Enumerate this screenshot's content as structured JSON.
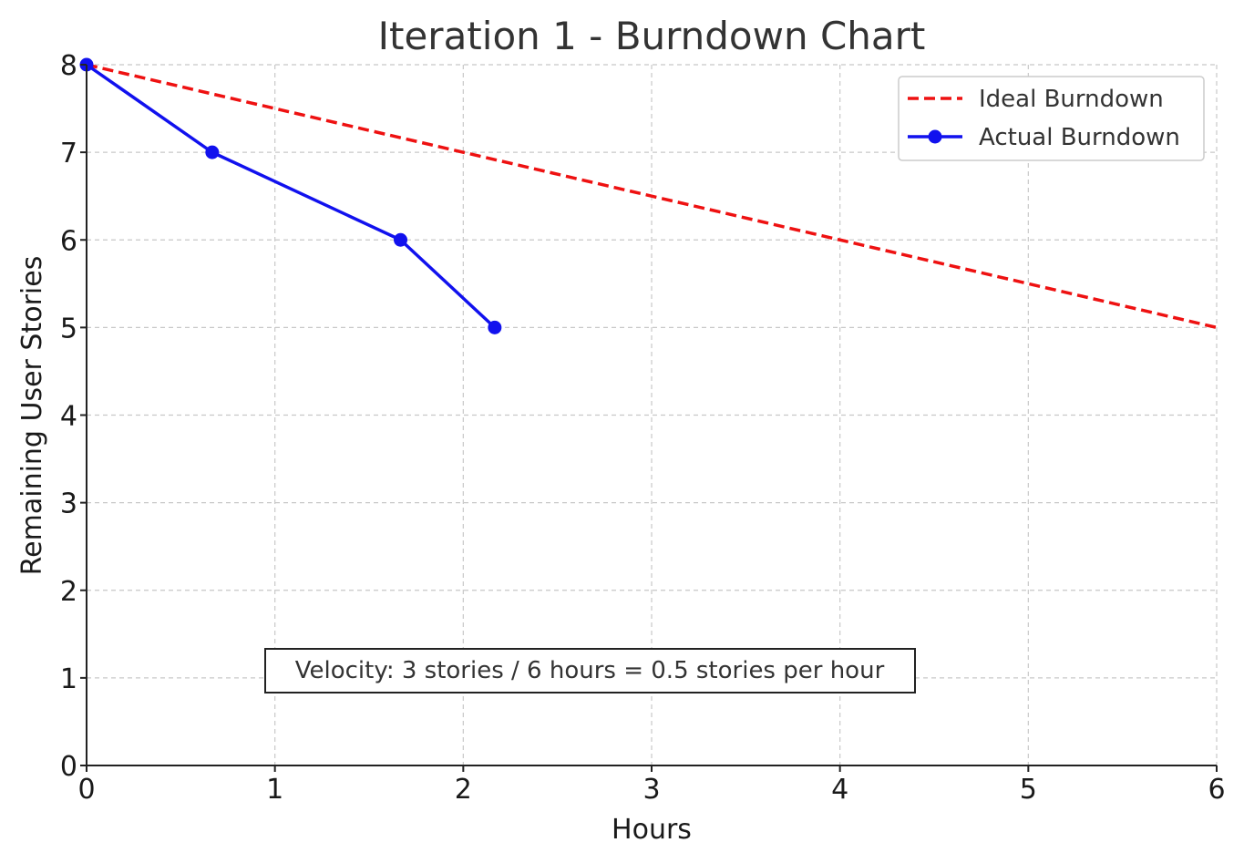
{
  "chart_data": {
    "type": "line",
    "title": "Iteration 1 - Burndown Chart",
    "xlabel": "Hours",
    "ylabel": "Remaining User Stories",
    "xlim": [
      0,
      6
    ],
    "ylim": [
      0,
      8
    ],
    "xticks": [
      0,
      1,
      2,
      3,
      4,
      5,
      6
    ],
    "yticks": [
      0,
      1,
      2,
      3,
      4,
      5,
      6,
      7,
      8
    ],
    "grid": true,
    "legend_position": "top-right",
    "series": [
      {
        "name": "Ideal Burndown",
        "style": "dashed",
        "markers": false,
        "color": "#ee1111",
        "x": [
          0,
          6
        ],
        "y": [
          8,
          5
        ]
      },
      {
        "name": "Actual Burndown",
        "style": "solid",
        "markers": true,
        "color": "#1111ee",
        "x": [
          0,
          0.667,
          1.667,
          2.167
        ],
        "y": [
          8,
          7,
          6,
          5
        ]
      }
    ],
    "annotation": {
      "text": "Velocity: 3 stories / 6 hours = 0.5 stories per hour",
      "x": 2.6,
      "y": 1.1
    }
  }
}
